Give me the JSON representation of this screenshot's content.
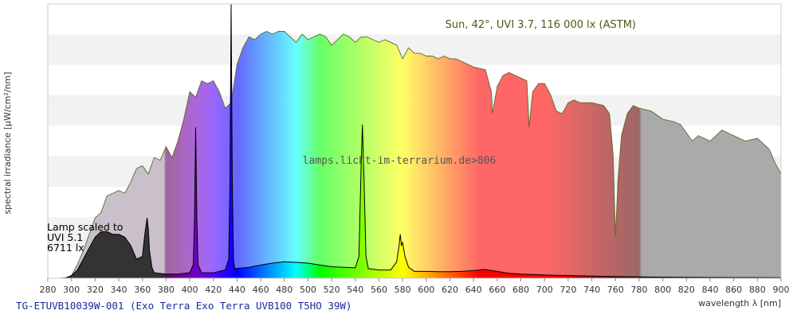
{
  "chart_data": {
    "type": "area",
    "title": "",
    "xlabel": "wavelength λ [nm]",
    "ylabel": "spectral irradiance [µW/cm²/nm]",
    "xlim": [
      280,
      900
    ],
    "x_ticks": [
      280,
      300,
      320,
      340,
      360,
      380,
      400,
      420,
      440,
      460,
      480,
      500,
      520,
      540,
      560,
      580,
      600,
      620,
      640,
      660,
      680,
      700,
      720,
      740,
      760,
      780,
      800,
      820,
      840,
      860,
      880,
      900
    ],
    "y_tick_labels_shown": false,
    "y_max_relative": 1.0,
    "grid": "horizontal bands, alternating white and light grey",
    "legend": "none",
    "series": [
      {
        "name": "Sun, 42°, UVI 3.7, 116 000 lx (ASTM)",
        "fill": "visible-spectrum colours",
        "x": [
          280,
          290,
          295,
          300,
          305,
          310,
          315,
          320,
          325,
          330,
          335,
          340,
          345,
          350,
          355,
          360,
          365,
          370,
          375,
          380,
          385,
          390,
          395,
          400,
          405,
          410,
          415,
          420,
          425,
          430,
          435,
          440,
          445,
          450,
          455,
          460,
          465,
          470,
          475,
          480,
          485,
          490,
          495,
          500,
          505,
          510,
          515,
          520,
          525,
          530,
          535,
          540,
          545,
          550,
          555,
          560,
          565,
          570,
          575,
          580,
          585,
          590,
          595,
          600,
          605,
          610,
          615,
          620,
          625,
          630,
          640,
          650,
          655,
          656,
          660,
          665,
          670,
          680,
          685,
          687,
          690,
          695,
          700,
          705,
          710,
          715,
          720,
          725,
          730,
          740,
          750,
          755,
          758,
          760,
          762,
          765,
          770,
          775,
          780,
          790,
          800,
          810,
          815,
          820,
          825,
          830,
          840,
          850,
          860,
          870,
          880,
          890,
          895,
          900
        ],
        "y": [
          0,
          0,
          0.002,
          0.01,
          0.05,
          0.1,
          0.16,
          0.22,
          0.24,
          0.3,
          0.31,
          0.32,
          0.31,
          0.35,
          0.4,
          0.41,
          0.38,
          0.44,
          0.43,
          0.48,
          0.44,
          0.5,
          0.58,
          0.68,
          0.66,
          0.72,
          0.71,
          0.72,
          0.68,
          0.62,
          0.64,
          0.78,
          0.84,
          0.88,
          0.87,
          0.89,
          0.9,
          0.89,
          0.9,
          0.9,
          0.88,
          0.86,
          0.89,
          0.87,
          0.88,
          0.89,
          0.88,
          0.85,
          0.87,
          0.89,
          0.88,
          0.86,
          0.88,
          0.88,
          0.87,
          0.86,
          0.87,
          0.86,
          0.85,
          0.8,
          0.84,
          0.82,
          0.82,
          0.81,
          0.81,
          0.8,
          0.81,
          0.8,
          0.8,
          0.79,
          0.77,
          0.76,
          0.68,
          0.6,
          0.7,
          0.74,
          0.75,
          0.73,
          0.72,
          0.55,
          0.68,
          0.71,
          0.71,
          0.67,
          0.61,
          0.6,
          0.64,
          0.65,
          0.64,
          0.64,
          0.63,
          0.6,
          0.45,
          0.15,
          0.35,
          0.52,
          0.6,
          0.63,
          0.62,
          0.61,
          0.58,
          0.57,
          0.56,
          0.53,
          0.5,
          0.52,
          0.5,
          0.54,
          0.52,
          0.5,
          0.51,
          0.47,
          0.42,
          0.38
        ]
      },
      {
        "name": "TG-ETUVB10039W-001 (Exo Terra Exo Terra UVB100 T5HO 39W)",
        "fill": "visible-spectrum colours",
        "x": [
          295,
          300,
          305,
          310,
          315,
          320,
          325,
          330,
          335,
          340,
          345,
          350,
          355,
          360,
          362,
          364,
          365,
          366,
          368,
          370,
          380,
          390,
          400,
          403,
          404,
          405,
          406,
          407,
          410,
          420,
          430,
          433,
          434,
          435,
          436,
          437,
          438,
          440,
          450,
          460,
          470,
          480,
          490,
          500,
          510,
          520,
          530,
          540,
          543,
          545,
          546,
          547,
          549,
          551,
          560,
          570,
          575,
          577,
          578,
          579,
          580,
          582,
          585,
          590,
          600,
          610,
          620,
          630,
          640,
          650,
          660,
          670,
          680,
          700,
          720,
          740,
          760,
          780,
          800,
          840,
          900
        ],
        "y": [
          0,
          0.01,
          0.03,
          0.07,
          0.11,
          0.15,
          0.17,
          0.17,
          0.16,
          0.16,
          0.15,
          0.12,
          0.07,
          0.08,
          0.16,
          0.22,
          0.18,
          0.1,
          0.04,
          0.02,
          0.015,
          0.015,
          0.02,
          0.05,
          0.22,
          0.55,
          0.22,
          0.05,
          0.02,
          0.02,
          0.03,
          0.07,
          0.35,
          1.0,
          0.35,
          0.07,
          0.035,
          0.036,
          0.04,
          0.048,
          0.055,
          0.06,
          0.058,
          0.055,
          0.048,
          0.042,
          0.04,
          0.038,
          0.08,
          0.42,
          0.56,
          0.42,
          0.08,
          0.035,
          0.03,
          0.03,
          0.06,
          0.12,
          0.16,
          0.12,
          0.13,
          0.08,
          0.04,
          0.025,
          0.025,
          0.024,
          0.024,
          0.025,
          0.028,
          0.032,
          0.025,
          0.018,
          0.015,
          0.012,
          0.01,
          0.008,
          0.006,
          0.005,
          0.004,
          0.003,
          0.002
        ]
      }
    ],
    "annotations": {
      "sun_label": "Sun, 42°, UVI 3.7, 116 000 lx (ASTM)",
      "watermark": "lamps.licht-im-terrarium.de>806",
      "lamp_note_lines": [
        "Lamp scaled to",
        "UVI 5.1",
        "6711 lx"
      ]
    },
    "footer_title": "TG-ETUVB10039W-001 (Exo Terra Exo Terra UVB100 T5HO 39W)"
  }
}
